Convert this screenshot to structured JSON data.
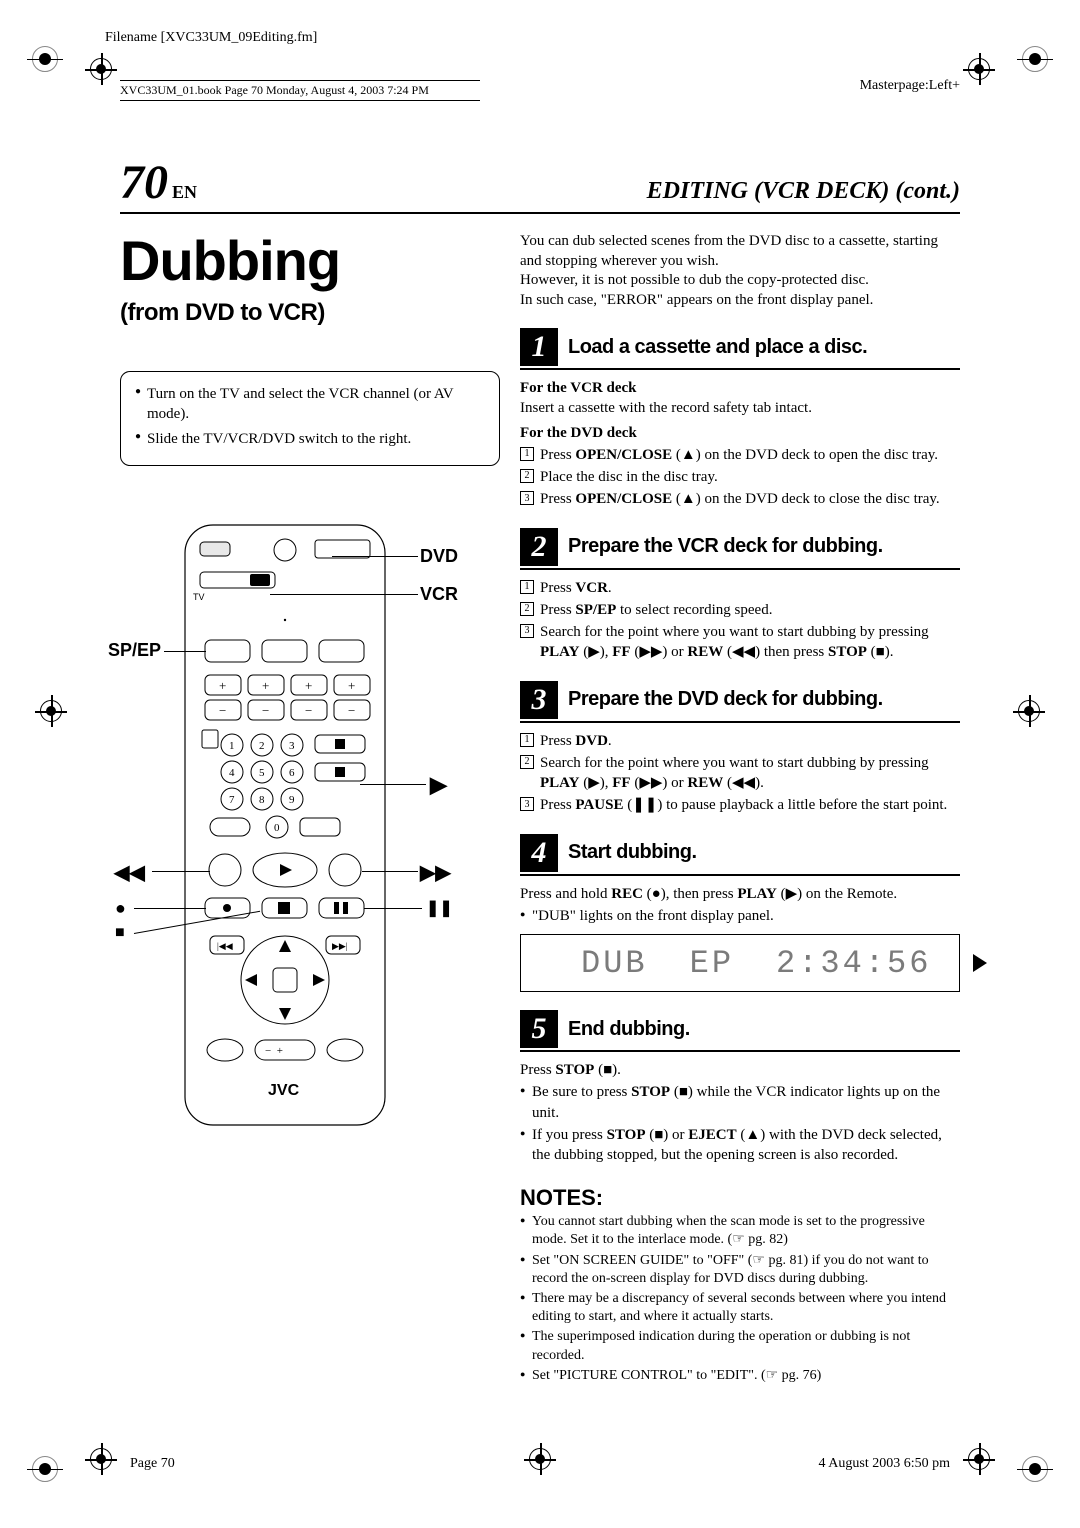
{
  "meta": {
    "filename": "Filename [XVC33UM_09Editing.fm]",
    "bookline": "XVC33UM_01.book  Page 70  Monday, August 4, 2003  7:24 PM",
    "masterpage": "Masterpage:Left+",
    "footer_left": "Page 70",
    "footer_right": "4 August 2003 6:50 pm"
  },
  "header": {
    "page_number": "70",
    "page_lang": "EN",
    "section": "EDITING (VCR DECK) (cont.)"
  },
  "left": {
    "title": "Dubbing",
    "subtitle": "(from DVD to VCR)",
    "info": [
      "Turn on the TV and select the VCR channel (or AV mode).",
      "Slide the TV/VCR/DVD switch to the right."
    ],
    "labels": {
      "dvd": "DVD",
      "vcr": "VCR",
      "spep": "SP/EP",
      "play": "▶",
      "rew": "◀◀",
      "ff": "▶▶",
      "rec": "●",
      "stop": "■",
      "pause": "❚❚",
      "brand": "JVC"
    }
  },
  "right": {
    "intro": [
      "You can dub selected scenes from the DVD disc to a cassette, starting and stopping wherever you wish.",
      "However, it is not possible to dub the copy-protected disc.",
      "In such case, \"ERROR\" appears on the front display panel."
    ],
    "steps": [
      {
        "num": "1",
        "title": "Load a cassette and place a disc.",
        "body_html": "<div class='sub-head' data-name='subhead'>For the VCR deck</div><div>Insert a cassette with the record safety tab intact.</div><div class='sub-head' data-name='subhead'>For the DVD deck</div><div class='numitem'><span class='numbox'>1</span><span>Press <b>OPEN/CLOSE</b> (<span class='sym'>▲</span>) on the DVD deck to open the disc tray.</span></div><div class='numitem'><span class='numbox'>2</span><span>Place the disc in the disc tray.</span></div><div class='numitem'><span class='numbox'>3</span><span>Press <b>OPEN/CLOSE</b> (<span class='sym'>▲</span>) on the DVD deck to close the disc tray.</span></div>"
      },
      {
        "num": "2",
        "title": "Prepare the VCR deck for dubbing.",
        "body_html": "<div class='numitem'><span class='numbox'>1</span><span>Press <b>VCR</b>.</span></div><div class='numitem'><span class='numbox'>2</span><span>Press <b>SP/EP</b> to select recording speed.</span></div><div class='numitem'><span class='numbox'>3</span><span>Search for the point where you want to start dubbing by pressing <b>PLAY</b> (<span class='sym'>▶</span>), <b>FF</b> (<span class='sym'>▶▶</span>) or <b>REW</b> (<span class='sym'>◀◀</span>) then press <b>STOP</b> (<span class='sym'>■</span>).</span></div>"
      },
      {
        "num": "3",
        "title": "Prepare the DVD deck for dubbing.",
        "body_html": "<div class='numitem'><span class='numbox'>1</span><span>Press <b>DVD</b>.</span></div><div class='numitem'><span class='numbox'>2</span><span>Search for the point where you want to start dubbing by pressing <b>PLAY</b> (<span class='sym'>▶</span>), <b>FF</b> (<span class='sym'>▶▶</span>) or <b>REW</b> (<span class='sym'>◀◀</span>).</span></div><div class='numitem'><span class='numbox'>3</span><span>Press <b>PAUSE</b> (<span class='sym'>❚❚</span>) to pause playback a little before the start point.</span></div>"
      },
      {
        "num": "4",
        "title": "Start dubbing.",
        "body_html": "<div>Press and hold <b>REC</b> (<span class='sym'>●</span>), then press <b>PLAY</b> (<span class='sym'>▶</span>) on the Remote.</div><ul class='bulleted'><li>\"DUB\" lights on the front display panel.</li></ul>",
        "has_display": true
      },
      {
        "num": "5",
        "title": "End dubbing.",
        "body_html": "<div>Press <b>STOP</b> (<span class='sym'>■</span>).</div><ul class='bulleted'><li>Be sure to press <b>STOP</b> (<span class='sym'>■</span>) while the VCR indicator lights up on the unit.</li><li>If you press <b>STOP</b> (<span class='sym'>■</span>) or <b>EJECT</b> (<span class='sym'>▲</span>) with the DVD deck selected, the dubbing stopped, but the opening screen is also recorded.</li></ul>"
      }
    ],
    "display": {
      "dub": "DUB",
      "mode": "EP",
      "time": "2:34:56"
    },
    "notes_title": "NOTES:",
    "notes": [
      "You cannot start dubbing when the scan mode is set to the progressive mode. Set it to the interlace mode. (☞ pg. 82)",
      "Set \"ON SCREEN GUIDE\" to \"OFF\" (☞ pg. 81) if you do not want to record the on-screen display for DVD discs during dubbing.",
      "There may be a discrepancy of several seconds between where you intend editing to start, and where it actually starts.",
      "The superimposed indication during the operation or dubbing is not recorded.",
      "Set \"PICTURE CONTROL\" to \"EDIT\". (☞ pg. 76)"
    ]
  }
}
